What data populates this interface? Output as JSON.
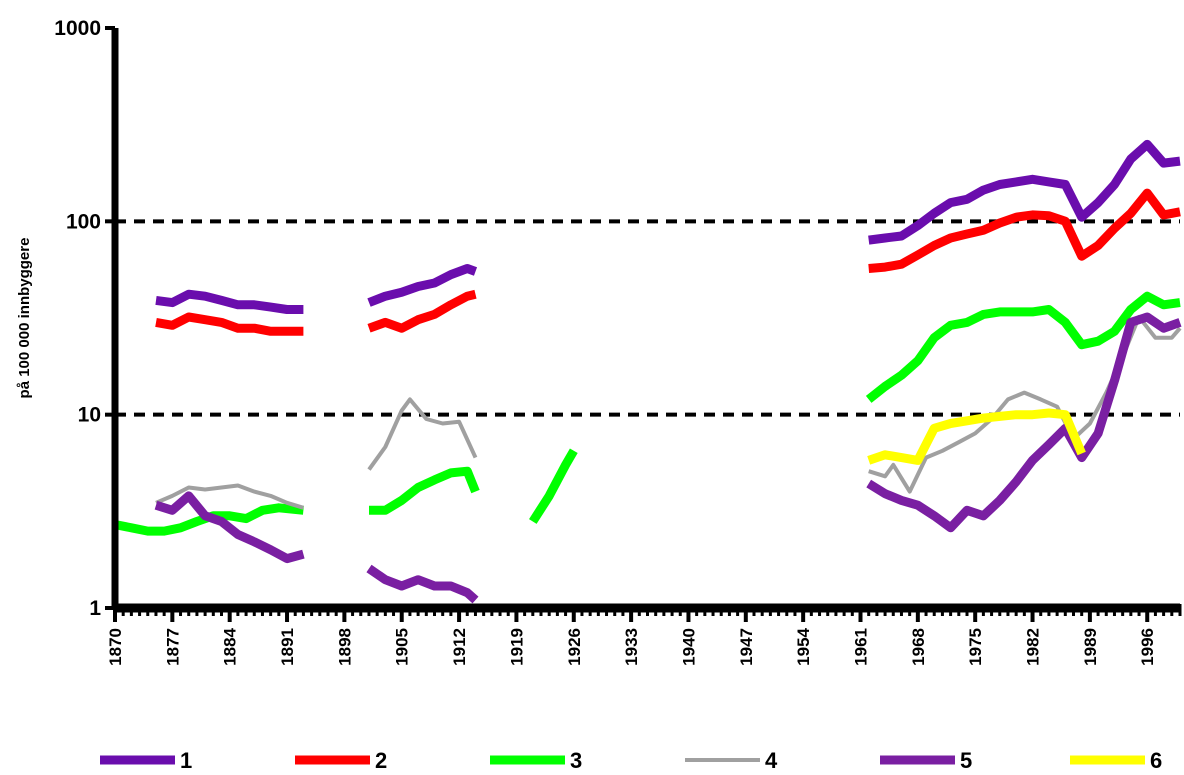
{
  "chart_data": {
    "type": "line",
    "title": "",
    "xlabel": "",
    "ylabel": "på 100 000 innbyggere",
    "yscale": "log",
    "ylim": [
      1,
      1000
    ],
    "xlim": [
      1870,
      2000
    ],
    "y_ticks": [
      "1",
      "10",
      "100",
      "1000"
    ],
    "x_ticks": [
      "1870",
      "1877",
      "1884",
      "1891",
      "1898",
      "1905",
      "1912",
      "1919",
      "1926",
      "1933",
      "1940",
      "1947",
      "1954",
      "1961",
      "1968",
      "1975",
      "1982",
      "1989",
      "1996"
    ],
    "reference_lines": [
      10,
      100
    ],
    "legend": {
      "position": "bottom"
    },
    "series": [
      {
        "name": "1",
        "color": "#6a0dad",
        "segments": [
          [
            [
              1875,
              39
            ],
            [
              1877,
              38
            ],
            [
              1879,
              42
            ],
            [
              1881,
              41
            ],
            [
              1883,
              39
            ],
            [
              1885,
              37
            ],
            [
              1887,
              37
            ],
            [
              1889,
              36
            ],
            [
              1891,
              35
            ],
            [
              1893,
              35
            ]
          ],
          [
            [
              1901,
              38
            ],
            [
              1903,
              41
            ],
            [
              1905,
              43
            ],
            [
              1907,
              46
            ],
            [
              1909,
              48
            ],
            [
              1911,
              53
            ],
            [
              1913,
              57
            ],
            [
              1914,
              55
            ]
          ],
          [
            [
              1962,
              80
            ],
            [
              1964,
              82
            ],
            [
              1966,
              84
            ],
            [
              1968,
              95
            ],
            [
              1970,
              110
            ],
            [
              1972,
              125
            ],
            [
              1974,
              130
            ],
            [
              1976,
              145
            ],
            [
              1978,
              155
            ],
            [
              1980,
              160
            ],
            [
              1982,
              165
            ],
            [
              1984,
              160
            ],
            [
              1986,
              155
            ],
            [
              1988,
              105
            ],
            [
              1990,
              125
            ],
            [
              1992,
              155
            ],
            [
              1994,
              210
            ],
            [
              1996,
              250
            ],
            [
              1998,
              200
            ],
            [
              2000,
              205
            ]
          ]
        ]
      },
      {
        "name": "2",
        "color": "#ff0000",
        "segments": [
          [
            [
              1875,
              30
            ],
            [
              1877,
              29
            ],
            [
              1879,
              32
            ],
            [
              1881,
              31
            ],
            [
              1883,
              30
            ],
            [
              1885,
              28
            ],
            [
              1887,
              28
            ],
            [
              1889,
              27
            ],
            [
              1891,
              27
            ],
            [
              1893,
              27
            ]
          ],
          [
            [
              1901,
              28
            ],
            [
              1903,
              30
            ],
            [
              1905,
              28
            ],
            [
              1907,
              31
            ],
            [
              1909,
              33
            ],
            [
              1911,
              37
            ],
            [
              1913,
              41
            ],
            [
              1914,
              42
            ]
          ],
          [
            [
              1962,
              57
            ],
            [
              1964,
              58
            ],
            [
              1966,
              60
            ],
            [
              1968,
              67
            ],
            [
              1970,
              75
            ],
            [
              1972,
              82
            ],
            [
              1974,
              86
            ],
            [
              1976,
              90
            ],
            [
              1978,
              98
            ],
            [
              1980,
              105
            ],
            [
              1982,
              108
            ],
            [
              1984,
              107
            ],
            [
              1986,
              100
            ],
            [
              1988,
              66
            ],
            [
              1990,
              75
            ],
            [
              1992,
              92
            ],
            [
              1994,
              110
            ],
            [
              1996,
              140
            ],
            [
              1998,
              108
            ],
            [
              2000,
              112
            ]
          ]
        ]
      },
      {
        "name": "3",
        "color": "#00ff00",
        "segments": [
          [
            [
              1870,
              2.7
            ],
            [
              1872,
              2.6
            ],
            [
              1874,
              2.5
            ],
            [
              1876,
              2.5
            ],
            [
              1878,
              2.6
            ],
            [
              1880,
              2.8
            ],
            [
              1882,
              3.0
            ],
            [
              1884,
              3.0
            ],
            [
              1886,
              2.9
            ],
            [
              1888,
              3.2
            ],
            [
              1890,
              3.3
            ],
            [
              1893,
              3.2
            ]
          ],
          [
            [
              1901,
              3.2
            ],
            [
              1903,
              3.2
            ],
            [
              1905,
              3.6
            ],
            [
              1907,
              4.2
            ],
            [
              1909,
              4.6
            ],
            [
              1911,
              5.0
            ],
            [
              1913,
              5.1
            ],
            [
              1914,
              4.0
            ]
          ],
          [
            [
              1921,
              2.8
            ],
            [
              1923,
              3.8
            ],
            [
              1925,
              5.5
            ],
            [
              1926,
              6.5
            ]
          ],
          [
            [
              1962,
              12
            ],
            [
              1964,
              14
            ],
            [
              1966,
              16
            ],
            [
              1968,
              19
            ],
            [
              1970,
              25
            ],
            [
              1972,
              29
            ],
            [
              1974,
              30
            ],
            [
              1976,
              33
            ],
            [
              1978,
              34
            ],
            [
              1980,
              34
            ],
            [
              1982,
              34
            ],
            [
              1984,
              35
            ],
            [
              1986,
              30
            ],
            [
              1988,
              23
            ],
            [
              1990,
              24
            ],
            [
              1992,
              27
            ],
            [
              1994,
              35
            ],
            [
              1996,
              41
            ],
            [
              1998,
              37
            ],
            [
              2000,
              38
            ]
          ]
        ]
      },
      {
        "name": "4",
        "color": "#a0a0a0",
        "segments": [
          [
            [
              1875,
              3.5
            ],
            [
              1877,
              3.8
            ],
            [
              1879,
              4.2
            ],
            [
              1881,
              4.1
            ],
            [
              1883,
              4.2
            ],
            [
              1885,
              4.3
            ],
            [
              1887,
              4.0
            ],
            [
              1889,
              3.8
            ],
            [
              1891,
              3.5
            ],
            [
              1893,
              3.3
            ]
          ],
          [
            [
              1901,
              5.2
            ],
            [
              1903,
              6.8
            ],
            [
              1905,
              10.5
            ],
            [
              1906,
              12
            ],
            [
              1908,
              9.5
            ],
            [
              1910,
              9.0
            ],
            [
              1912,
              9.2
            ],
            [
              1914,
              6.0
            ]
          ],
          [
            [
              1962,
              5.1
            ],
            [
              1964,
              4.8
            ],
            [
              1965,
              5.5
            ],
            [
              1967,
              4.0
            ],
            [
              1969,
              6.0
            ],
            [
              1971,
              6.5
            ],
            [
              1973,
              7.2
            ],
            [
              1975,
              8.0
            ],
            [
              1977,
              9.5
            ],
            [
              1979,
              12
            ],
            [
              1981,
              13
            ],
            [
              1983,
              12
            ],
            [
              1985,
              11
            ],
            [
              1987,
              7.5
            ],
            [
              1989,
              9.0
            ],
            [
              1991,
              13
            ],
            [
              1993,
              20
            ],
            [
              1995,
              32
            ],
            [
              1997,
              25
            ],
            [
              1999,
              25
            ],
            [
              2000,
              28
            ]
          ]
        ]
      },
      {
        "name": "5",
        "color": "#7a1fa2",
        "segments": [
          [
            [
              1875,
              3.4
            ],
            [
              1877,
              3.2
            ],
            [
              1879,
              3.8
            ],
            [
              1881,
              3.0
            ],
            [
              1883,
              2.8
            ],
            [
              1885,
              2.4
            ],
            [
              1887,
              2.2
            ],
            [
              1889,
              2.0
            ],
            [
              1891,
              1.8
            ],
            [
              1893,
              1.9
            ]
          ],
          [
            [
              1901,
              1.6
            ],
            [
              1903,
              1.4
            ],
            [
              1905,
              1.3
            ],
            [
              1907,
              1.4
            ],
            [
              1909,
              1.3
            ],
            [
              1911,
              1.3
            ],
            [
              1913,
              1.2
            ],
            [
              1914,
              1.1
            ]
          ],
          [
            [
              1962,
              4.4
            ],
            [
              1964,
              3.9
            ],
            [
              1966,
              3.6
            ],
            [
              1968,
              3.4
            ],
            [
              1970,
              3.0
            ],
            [
              1972,
              2.6
            ],
            [
              1974,
              3.2
            ],
            [
              1976,
              3.0
            ],
            [
              1978,
              3.6
            ],
            [
              1980,
              4.5
            ],
            [
              1982,
              5.8
            ],
            [
              1984,
              7.0
            ],
            [
              1986,
              8.5
            ],
            [
              1988,
              6.0
            ],
            [
              1990,
              8.0
            ],
            [
              1992,
              15
            ],
            [
              1994,
              30
            ],
            [
              1996,
              32
            ],
            [
              1998,
              28
            ],
            [
              2000,
              30
            ]
          ]
        ]
      },
      {
        "name": "6",
        "color": "#ffff00",
        "segments": [
          [
            [
              1962,
              5.8
            ],
            [
              1964,
              6.2
            ],
            [
              1966,
              6.0
            ],
            [
              1968,
              5.8
            ],
            [
              1970,
              8.5
            ],
            [
              1972,
              9.0
            ],
            [
              1974,
              9.3
            ],
            [
              1976,
              9.6
            ],
            [
              1978,
              9.8
            ],
            [
              1980,
              10
            ],
            [
              1982,
              10
            ],
            [
              1984,
              10.2
            ],
            [
              1986,
              10
            ],
            [
              1988,
              6.3
            ]
          ]
        ]
      }
    ]
  }
}
